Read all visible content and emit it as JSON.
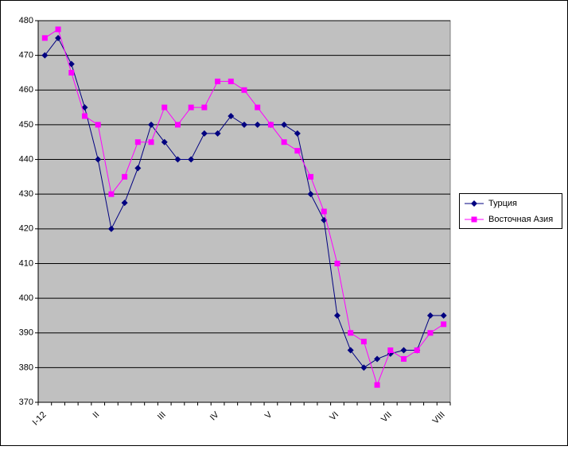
{
  "chart_data": {
    "type": "line",
    "categories": [
      "I-12",
      null,
      null,
      null,
      "II",
      null,
      null,
      null,
      null,
      "III",
      null,
      null,
      null,
      "IV",
      null,
      null,
      null,
      "V",
      null,
      null,
      null,
      null,
      "VI",
      null,
      null,
      null,
      "VII",
      null,
      null,
      null,
      "VIII"
    ],
    "series": [
      {
        "name": "Турция",
        "color": "#000080",
        "marker": "diamond",
        "values": [
          470,
          475,
          467.5,
          455,
          440,
          420,
          427.5,
          437.5,
          450,
          445,
          440,
          440,
          447.5,
          447.5,
          452.5,
          450,
          450,
          450,
          450,
          447.5,
          430,
          422.5,
          395,
          385,
          380,
          382.5,
          384,
          385,
          385,
          395,
          395
        ]
      },
      {
        "name": "Восточная Азия",
        "color": "#ff00ff",
        "marker": "square",
        "values": [
          475,
          477.5,
          465,
          452.5,
          450,
          430,
          435,
          445,
          445,
          455,
          450,
          455,
          455,
          462.5,
          462.5,
          460,
          455,
          450,
          445,
          442.5,
          435,
          425,
          410,
          390,
          387.5,
          375,
          385,
          382.5,
          385,
          390,
          392.5
        ]
      }
    ],
    "ylim": [
      370,
      480
    ],
    "yticks": [
      370,
      380,
      390,
      400,
      410,
      420,
      430,
      440,
      450,
      460,
      470,
      480
    ],
    "grid": true,
    "legend": "right"
  }
}
